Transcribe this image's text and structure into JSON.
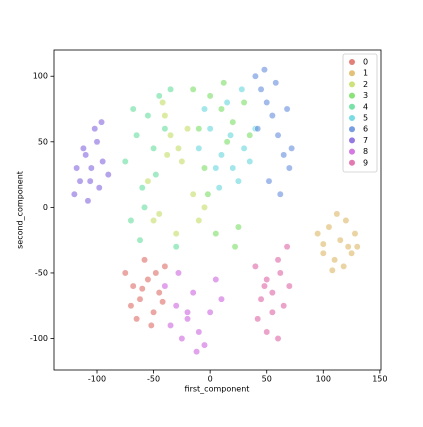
{
  "chart_data": {
    "type": "scatter",
    "xlabel": "first_component",
    "ylabel": "second_component",
    "xlim": [
      -138,
      151
    ],
    "ylim": [
      -124,
      120
    ],
    "xticks": [
      -100,
      -50,
      0,
      50,
      100,
      150
    ],
    "yticks": [
      -100,
      -50,
      0,
      50,
      100
    ],
    "legend": "upper right",
    "series": [
      {
        "name": "0",
        "color": "#db5f57",
        "x": [
          -75,
          -68,
          -62,
          -55,
          -50,
          -45,
          -40,
          -65,
          -58,
          -52,
          -70,
          -48,
          -60,
          -42
        ],
        "y": [
          -50,
          -60,
          -70,
          -55,
          -80,
          -65,
          -45,
          -85,
          -40,
          -90,
          -75,
          -50,
          -62,
          -72
        ]
      },
      {
        "name": "1",
        "color": "#dbb157",
        "x": [
          95,
          100,
          105,
          110,
          115,
          120,
          125,
          130,
          108,
          118,
          128,
          100,
          112,
          122
        ],
        "y": [
          -20,
          -35,
          -15,
          -40,
          -25,
          -10,
          -35,
          -30,
          -48,
          -45,
          -20,
          -28,
          -5,
          -30
        ]
      },
      {
        "name": "2",
        "color": "#c0db57",
        "x": [
          -35,
          -28,
          -40,
          -20,
          -45,
          -50,
          -10,
          -5,
          -55,
          -25,
          -30,
          -15,
          -42,
          -38
        ],
        "y": [
          55,
          45,
          70,
          60,
          -5,
          -10,
          -10,
          0,
          20,
          35,
          -20,
          10,
          80,
          40
        ]
      },
      {
        "name": "3",
        "color": "#6edb57",
        "x": [
          0,
          10,
          20,
          -10,
          30,
          15,
          5,
          25,
          -5,
          35,
          -15,
          12,
          22,
          -2
        ],
        "y": [
          85,
          75,
          65,
          60,
          80,
          50,
          -20,
          -15,
          30,
          55,
          90,
          95,
          -30,
          10
        ]
      },
      {
        "name": "4",
        "color": "#57db94",
        "x": [
          -55,
          -65,
          -60,
          -45,
          -70,
          -75,
          -50,
          -40,
          -62,
          -35,
          -58,
          -30,
          -68,
          -48
        ],
        "y": [
          70,
          55,
          15,
          85,
          -10,
          35,
          45,
          60,
          -25,
          90,
          0,
          -30,
          75,
          25
        ]
      },
      {
        "name": "5",
        "color": "#57d3db",
        "x": [
          10,
          20,
          30,
          0,
          15,
          25,
          5,
          35,
          -5,
          18,
          28,
          8,
          40,
          -10
        ],
        "y": [
          40,
          30,
          45,
          60,
          80,
          20,
          30,
          35,
          75,
          55,
          90,
          15,
          60,
          45
        ]
      },
      {
        "name": "6",
        "color": "#5783db",
        "x": [
          40,
          45,
          50,
          55,
          60,
          65,
          70,
          48,
          58,
          68,
          52,
          62,
          42,
          72
        ],
        "y": [
          100,
          90,
          80,
          70,
          55,
          40,
          30,
          105,
          95,
          75,
          20,
          10,
          60,
          45
        ]
      },
      {
        "name": "7",
        "color": "#7957db",
        "x": [
          -115,
          -110,
          -105,
          -100,
          -95,
          -120,
          -108,
          -98,
          -112,
          -102,
          -90,
          -118,
          -106,
          -96
        ],
        "y": [
          20,
          40,
          30,
          50,
          35,
          10,
          5,
          15,
          45,
          60,
          25,
          30,
          20,
          65
        ]
      },
      {
        "name": "8",
        "color": "#c957db",
        "x": [
          -40,
          -30,
          -20,
          -10,
          0,
          10,
          -25,
          -15,
          -5,
          -35,
          5,
          -20,
          -12,
          -28
        ],
        "y": [
          -60,
          -75,
          -85,
          -95,
          -80,
          -70,
          -100,
          -65,
          -105,
          -90,
          -55,
          -80,
          -110,
          -50
        ]
      },
      {
        "name": "9",
        "color": "#db579e",
        "x": [
          40,
          50,
          60,
          70,
          45,
          55,
          65,
          50,
          60,
          42,
          68,
          55,
          48,
          62
        ],
        "y": [
          -45,
          -55,
          -40,
          -60,
          -70,
          -80,
          -75,
          -95,
          -100,
          -85,
          -30,
          -65,
          -60,
          -50
        ]
      }
    ]
  }
}
